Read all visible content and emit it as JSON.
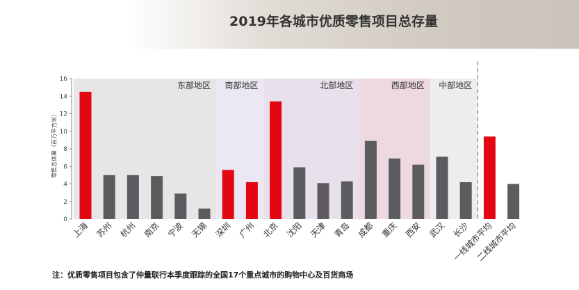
{
  "title": "2019年各城市优质零售项目总存量",
  "footnote": "注：优质零售项目包含了仲量联行本季度跟踪的全国17个重点城市的购物中心及百货商场",
  "chart_data": {
    "type": "bar",
    "ylabel": "零售总体量（百万平方米）",
    "ylim": [
      0,
      16
    ],
    "yticks": [
      0,
      2,
      4,
      6,
      8,
      10,
      12,
      14,
      16
    ],
    "categories": [
      "上海",
      "苏州",
      "杭州",
      "南京",
      "宁波",
      "无锡",
      "深圳",
      "广州",
      "北京",
      "沈阳",
      "天津",
      "青岛",
      "成都",
      "重庆",
      "西安",
      "武汉",
      "长沙",
      "一线城市平均",
      "二线城市平均"
    ],
    "values": [
      14.5,
      5.0,
      5.0,
      4.9,
      2.9,
      1.2,
      5.6,
      4.2,
      13.4,
      5.9,
      4.1,
      4.3,
      8.9,
      6.9,
      6.2,
      7.1,
      4.2,
      9.4,
      4.0
    ],
    "highlight": [
      "上海",
      "深圳",
      "广州",
      "北京",
      "一线城市平均"
    ],
    "colors": {
      "highlight": "#e30613",
      "normal": "#5c5c60"
    },
    "regions": [
      {
        "label": "东部地区",
        "from": 0,
        "to": 5,
        "color": "#e6e6e6"
      },
      {
        "label": "南部地区",
        "from": 6,
        "to": 7,
        "color": "#ebe8f3"
      },
      {
        "label": "北部地区",
        "from": 8,
        "to": 11,
        "color": "#e8e0ea"
      },
      {
        "label": "西部地区",
        "from": 12,
        "to": 14,
        "color": "#eed9e0"
      },
      {
        "label": "中部地区",
        "from": 15,
        "to": 16,
        "color": "#ebeeec"
      }
    ],
    "divider_after": 16
  }
}
